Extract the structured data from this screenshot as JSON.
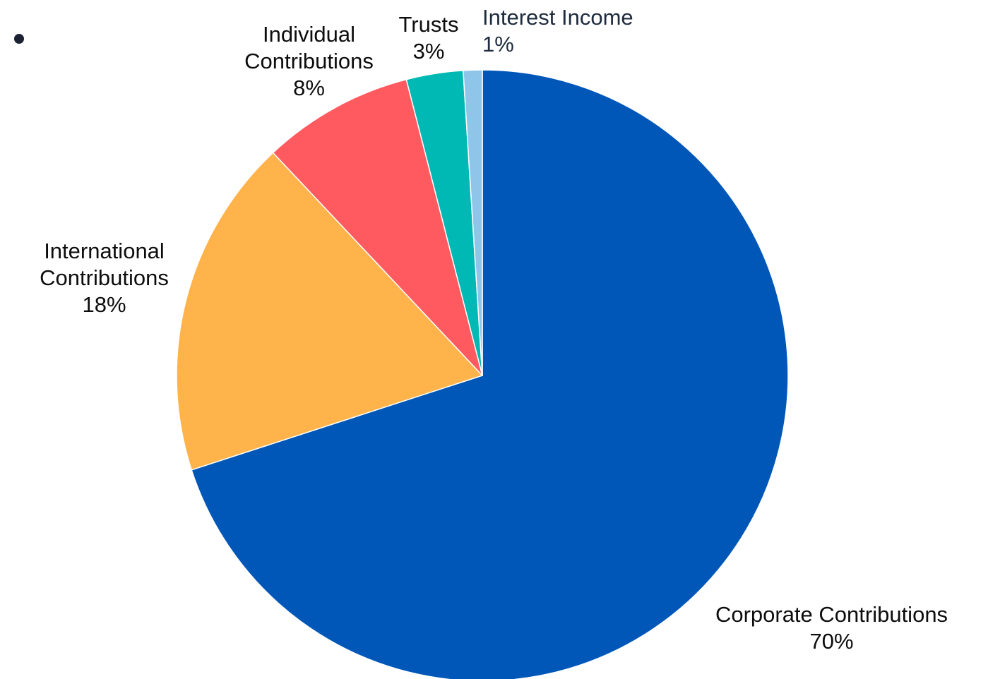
{
  "chart_data": {
    "type": "pie",
    "start_angle_deg": 0,
    "direction": "clockwise",
    "slices": [
      {
        "label": "Corporate Contributions",
        "value": 70,
        "pct_label": "70%",
        "color": "#0057b8"
      },
      {
        "label": "International Contributions",
        "value": 18,
        "pct_label": "18%",
        "color": "#ffb34a"
      },
      {
        "label": "Individual Contributions",
        "value": 8,
        "pct_label": "8%",
        "color": "#ff5a5f"
      },
      {
        "label": "Trusts",
        "value": 3,
        "pct_label": "3%",
        "color": "#00b8b4"
      },
      {
        "label": "Interest Income",
        "value": 1,
        "pct_label": "1%",
        "color": "#8ec5e8"
      }
    ]
  }
}
